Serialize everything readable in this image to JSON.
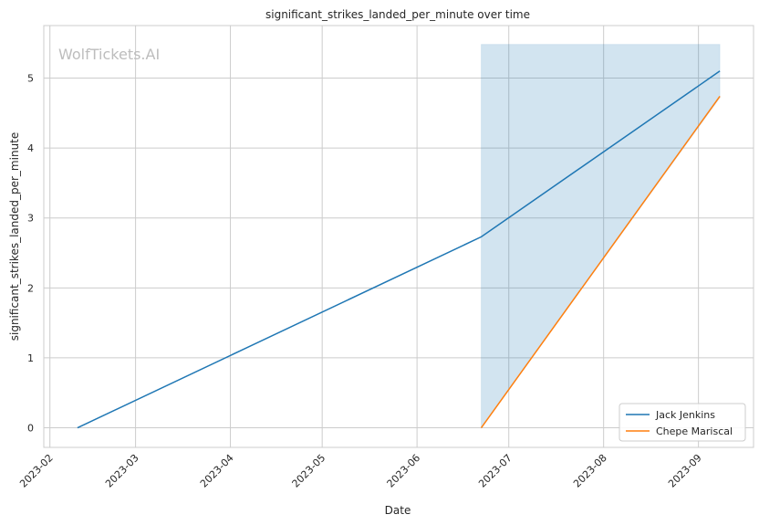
{
  "chart_data": {
    "type": "line",
    "title": "significant_strikes_landed_per_minute over time",
    "xlabel": "Date",
    "ylabel": "significant_strikes_landed_per_minute",
    "watermark": "WolfTickets.AI",
    "xlim": [
      "2023-01-30",
      "2023-09-19"
    ],
    "ylim": [
      -0.28,
      5.75
    ],
    "x_ticks": [
      "2023-02",
      "2023-03",
      "2023-04",
      "2023-05",
      "2023-06",
      "2023-07",
      "2023-08",
      "2023-09"
    ],
    "y_ticks": [
      0,
      1,
      2,
      3,
      4,
      5
    ],
    "grid": true,
    "legend_position": "lower-right",
    "series": [
      {
        "name": "Jack Jenkins",
        "color": "#1f77b4",
        "x": [
          "2023-02-10",
          "2023-06-22",
          "2023-09-08"
        ],
        "y": [
          0,
          2.73,
          5.1
        ]
      },
      {
        "name": "Chepe Mariscal",
        "color": "#ff7f0e",
        "x": [
          "2023-06-22",
          "2023-09-08"
        ],
        "y": [
          0,
          4.74
        ]
      }
    ],
    "confidence_band": {
      "color": "#1f77b4",
      "x": [
        "2023-06-22",
        "2023-09-08"
      ],
      "lower": [
        0,
        4.72
      ],
      "upper": [
        5.48,
        5.48
      ]
    }
  }
}
